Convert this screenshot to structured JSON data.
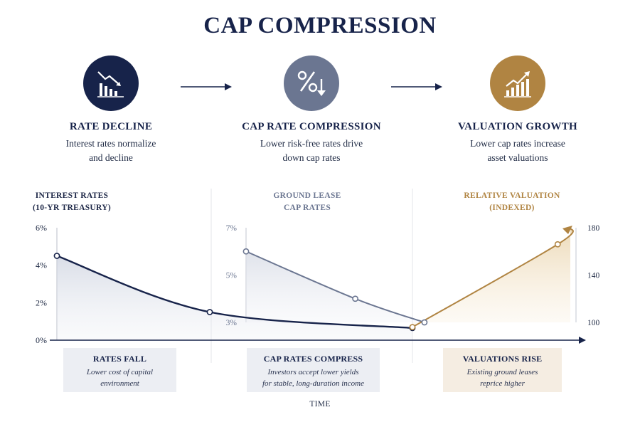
{
  "title": "CAP COMPRESSION",
  "steps": [
    {
      "heading": "RATE DECLINE",
      "desc_line1": "Interest rates normalize",
      "desc_line2": "and decline",
      "color": "#17234a",
      "icon": "chart-down-icon"
    },
    {
      "heading": "CAP RATE COMPRESSION",
      "desc_line1": "Lower risk-free rates drive",
      "desc_line2": "down cap rates",
      "color": "#6b7691",
      "icon": "percent-down-icon"
    },
    {
      "heading": "VALUATION GROWTH",
      "desc_line1": "Lower cap rates increase",
      "desc_line2": "asset valuations",
      "color": "#b08442",
      "icon": "chart-up-icon"
    }
  ],
  "panels": {
    "interest": {
      "line1": "INTEREST RATES",
      "line2": "(10-YR TREASURY)",
      "color": "#17234a"
    },
    "cap": {
      "line1": "GROUND LEASE",
      "line2": "CAP RATES",
      "color": "#6b7691"
    },
    "valuation": {
      "line1": "RELATIVE VALUATION",
      "line2": "(INDEXED)",
      "color": "#b08442"
    }
  },
  "boxes": [
    {
      "heading": "RATES FALL",
      "line1": "Lower cost of capital",
      "line2": "environment",
      "bg": "#eceef3"
    },
    {
      "heading": "CAP RATES COMPRESS",
      "line1": "Investors accept lower yields",
      "line2": "for stable, long-duration income",
      "bg": "#eceef3"
    },
    {
      "heading": "VALUATIONS RISE",
      "line1": "Existing ground leases",
      "line2": "reprice higher",
      "bg": "#f5ede2"
    }
  ],
  "x_axis_label": "TIME",
  "chart_data": [
    {
      "type": "line",
      "ylim": [
        0,
        6
      ],
      "yticks": [
        "0%",
        "2%",
        "4%",
        "6%"
      ],
      "points": [
        [
          0,
          4.5
        ],
        [
          0.43,
          1.5
        ],
        [
          1,
          0.65
        ]
      ]
    },
    {
      "type": "line",
      "ylim": [
        3,
        7
      ],
      "yticks": [
        "3%",
        "5%",
        "7%"
      ],
      "points": [
        [
          0,
          6
        ],
        [
          0.6,
          4.0
        ],
        [
          0.98,
          3.0
        ]
      ]
    },
    {
      "type": "line",
      "ylim": [
        100,
        180
      ],
      "yticks": [
        "100",
        "140",
        "180"
      ],
      "points": [
        [
          0,
          96
        ],
        [
          0.92,
          166
        ],
        [
          1,
          180
        ]
      ]
    }
  ],
  "colors": {
    "navy": "#17234a",
    "slate": "#6b7691",
    "gold": "#b08442"
  }
}
